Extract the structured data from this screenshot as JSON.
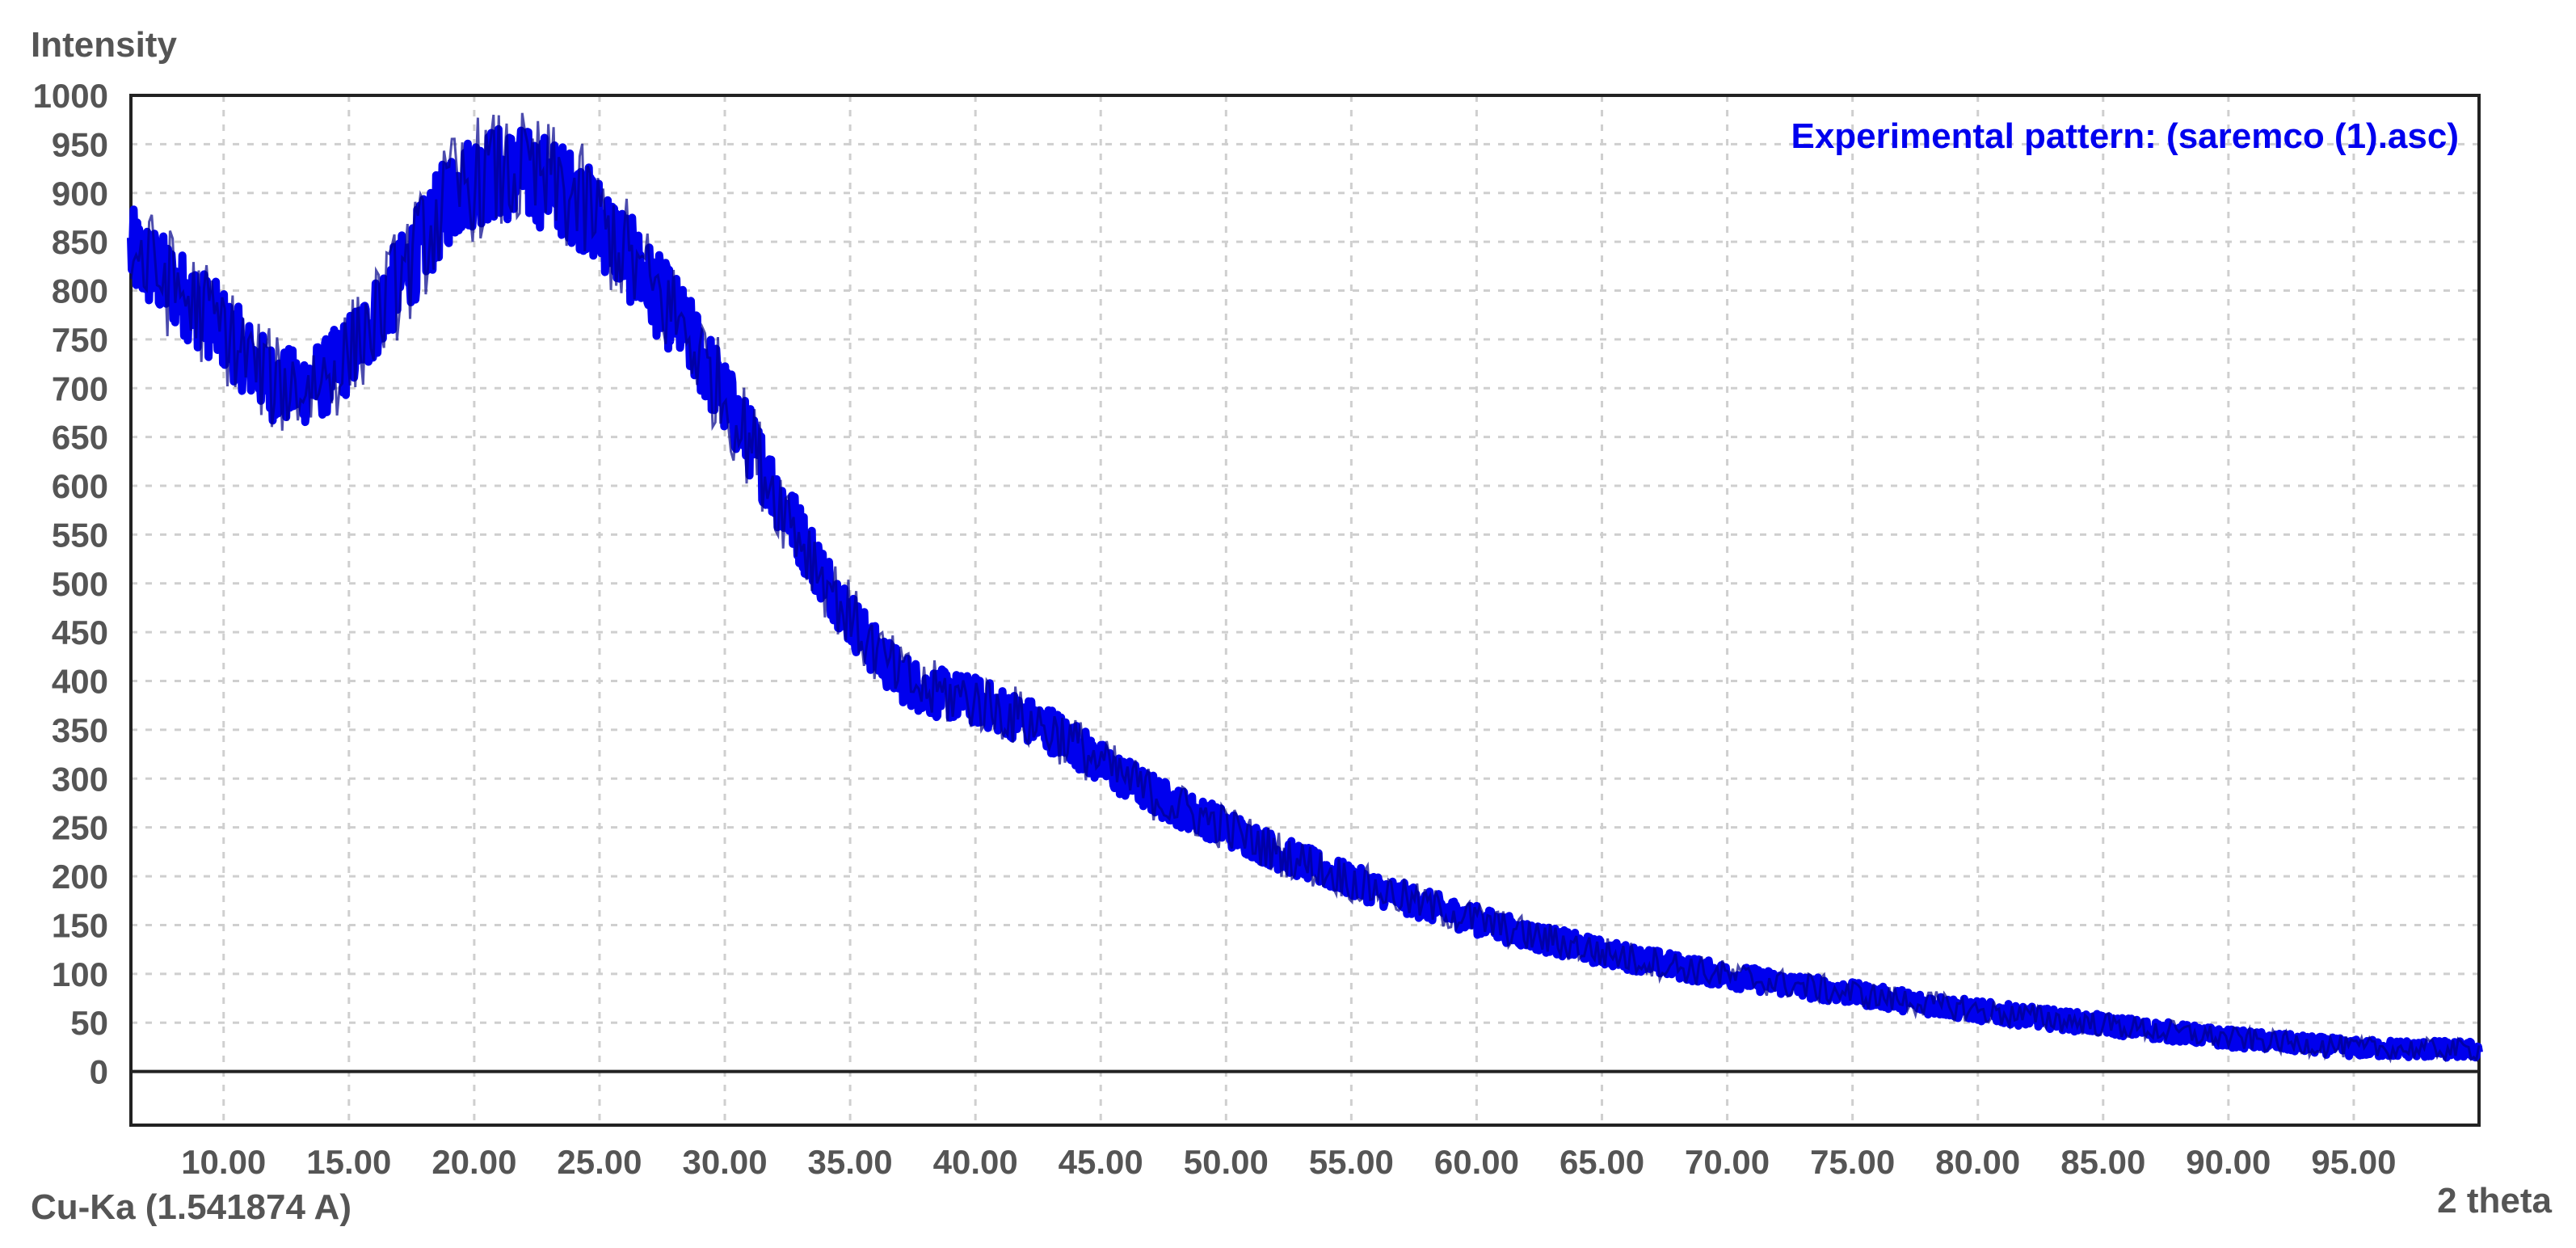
{
  "chart_data": {
    "type": "line",
    "ylabel": "Intensity",
    "xlabel": "2 theta",
    "radiation_label": "Cu-Ka (1.541874 A)",
    "legend": "Experimental pattern: (saremco (1).asc)",
    "xlim": [
      6.3,
      100.0
    ],
    "ylim": [
      -55,
      1000
    ],
    "x_ticks": [
      10,
      15,
      20,
      25,
      30,
      35,
      40,
      45,
      50,
      55,
      60,
      65,
      70,
      75,
      80,
      85,
      90,
      95
    ],
    "x_tick_labels": [
      "10.00",
      "15.00",
      "20.00",
      "25.00",
      "30.00",
      "35.00",
      "40.00",
      "45.00",
      "50.00",
      "55.00",
      "60.00",
      "65.00",
      "70.00",
      "75.00",
      "80.00",
      "85.00",
      "90.00",
      "95.00"
    ],
    "y_ticks": [
      0,
      50,
      100,
      150,
      200,
      250,
      300,
      350,
      400,
      450,
      500,
      550,
      600,
      650,
      700,
      750,
      800,
      850,
      900,
      950,
      1000
    ],
    "y_tick_labels": [
      "0",
      "50",
      "100",
      "150",
      "200",
      "250",
      "300",
      "350",
      "400",
      "450",
      "500",
      "550",
      "600",
      "650",
      "700",
      "750",
      "800",
      "850",
      "900",
      "950",
      "1000"
    ],
    "grid": true,
    "legend_position": "top-right",
    "series": [
      {
        "color": "#0000ee",
        "x": [
          6.3,
          8,
          10,
          11,
          12,
          13,
          14,
          15,
          16,
          17,
          18,
          19,
          20,
          21,
          22,
          23,
          24,
          25,
          26,
          27,
          28,
          29,
          30,
          31,
          32,
          33,
          34,
          35,
          36,
          37,
          38,
          39,
          40,
          41,
          42,
          43,
          44,
          45,
          46,
          47,
          48,
          50,
          52,
          55,
          58,
          60,
          62,
          65,
          70,
          75,
          80,
          85,
          90,
          95,
          100
        ],
        "y": [
          840,
          805,
          760,
          730,
          705,
          700,
          710,
          735,
          770,
          810,
          850,
          895,
          915,
          920,
          918,
          910,
          895,
          870,
          840,
          805,
          775,
          735,
          690,
          645,
          595,
          550,
          505,
          465,
          430,
          405,
          390,
          385,
          380,
          370,
          360,
          350,
          335,
          315,
          300,
          285,
          272,
          250,
          225,
          195,
          170,
          155,
          140,
          122,
          98,
          80,
          62,
          48,
          34,
          24,
          22
        ]
      }
    ]
  }
}
